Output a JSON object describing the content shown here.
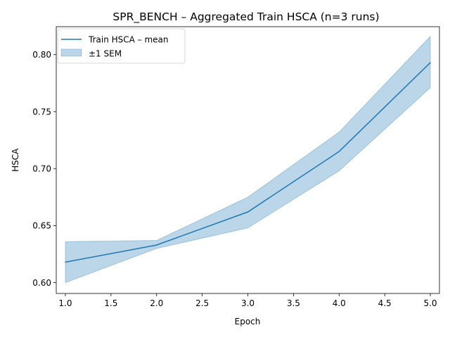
{
  "chart_data": {
    "type": "line",
    "title": "SPR_BENCH – Aggregated Train HSCA (n=3 runs)",
    "xlabel": "Epoch",
    "ylabel": "HSCA",
    "xlim": [
      0.9,
      5.1
    ],
    "ylim": [
      0.5905,
      0.8245
    ],
    "x_ticks": [
      1.0,
      1.5,
      2.0,
      2.5,
      3.0,
      3.5,
      4.0,
      4.5,
      5.0
    ],
    "x_tick_labels": [
      "1.0",
      "1.5",
      "2.0",
      "2.5",
      "3.0",
      "3.5",
      "4.0",
      "4.5",
      "5.0"
    ],
    "y_ticks": [
      0.6,
      0.65,
      0.7,
      0.75,
      0.8
    ],
    "y_tick_labels": [
      "0.60",
      "0.65",
      "0.70",
      "0.75",
      "0.80"
    ],
    "grid": false,
    "legend_position": "top-left",
    "x": [
      1,
      2,
      3,
      4,
      5
    ],
    "series": [
      {
        "name": "Train HSCA – mean",
        "values": [
          0.618,
          0.633,
          0.662,
          0.715,
          0.793
        ],
        "color": "#1f77b4"
      }
    ],
    "band": {
      "name": "±1 SEM",
      "lower": [
        0.6,
        0.63,
        0.648,
        0.698,
        0.771
      ],
      "upper": [
        0.636,
        0.637,
        0.675,
        0.732,
        0.816
      ],
      "color": "#1f77b4",
      "opacity": 0.3
    }
  }
}
